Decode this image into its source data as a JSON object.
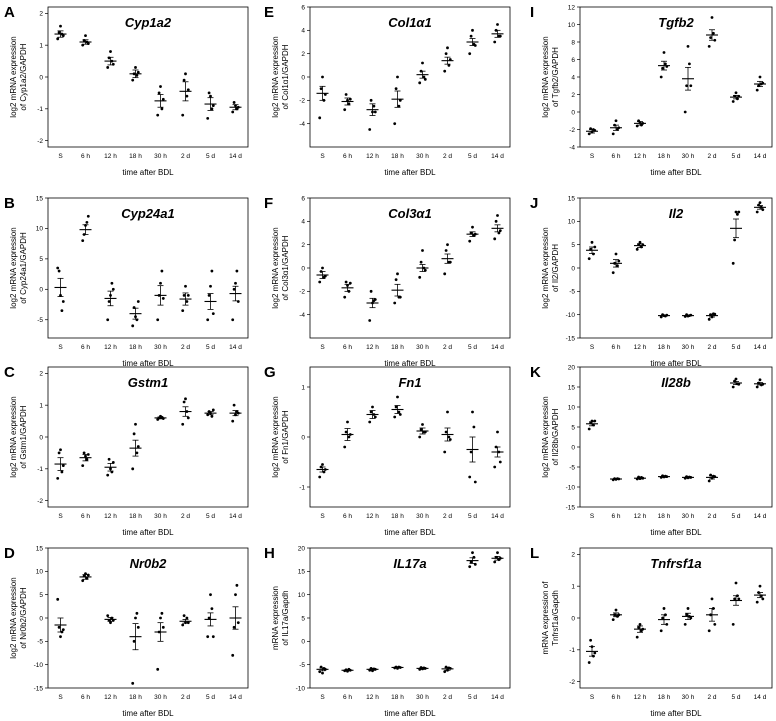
{
  "figure": {
    "xlabel": "time after BDL",
    "categories": [
      "S",
      "6 h",
      "12 h",
      "18 h",
      "30 h",
      "2 d",
      "5 d",
      "14 d"
    ]
  },
  "chart_data": [
    {
      "type": "scatter",
      "panel": "A",
      "title": "Cyp1a2",
      "ylabel": [
        "log2 mRNA expression",
        "of Cyp1a2/GAPDH"
      ],
      "xlabel": "time after BDL",
      "ylim": [
        -2.2,
        2.2
      ],
      "yticks": [
        -2,
        -1,
        0,
        1,
        2
      ],
      "categories": [
        "S",
        "6 h",
        "12 h",
        "18 h",
        "30 h",
        "2 d",
        "5 d",
        "14 d"
      ],
      "means": [
        1.35,
        1.1,
        0.5,
        0.1,
        -0.75,
        -0.45,
        -0.85,
        -0.95
      ],
      "sem": [
        0.1,
        0.07,
        0.12,
        0.12,
        0.2,
        0.3,
        0.2,
        0.08
      ],
      "points": [
        [
          1.2,
          1.4,
          1.6,
          1.35,
          1.3
        ],
        [
          1.0,
          1.15,
          1.3,
          1.1,
          1.05
        ],
        [
          0.3,
          0.6,
          0.8,
          0.5,
          0.4
        ],
        [
          -0.1,
          0.1,
          0.3,
          0.05,
          0.15
        ],
        [
          -1.2,
          -0.5,
          -0.3,
          -1.0,
          -0.7
        ],
        [
          -1.2,
          -0.1,
          0.1,
          -0.6,
          -0.4
        ],
        [
          -1.3,
          -0.5,
          -0.6,
          -1.0,
          -0.9
        ],
        [
          -1.1,
          -0.8,
          -0.9,
          -1.0,
          -0.95
        ]
      ]
    },
    {
      "type": "scatter",
      "panel": "B",
      "title": "Cyp24a1",
      "ylabel": [
        "log2 mRNA expression",
        "of Cyp24a1/GAPDH"
      ],
      "xlabel": "time after BDL",
      "ylim": [
        -8,
        15
      ],
      "yticks": [
        -5,
        0,
        5,
        10,
        15
      ],
      "categories": [
        "S",
        "6 h",
        "12 h",
        "18 h",
        "30 h",
        "2 d",
        "5 d",
        "14 d"
      ],
      "means": [
        0.3,
        9.8,
        -1.5,
        -4.0,
        -1.0,
        -1.6,
        -2.0,
        -0.7
      ],
      "sem": [
        1.5,
        0.8,
        1.2,
        0.9,
        1.6,
        1.0,
        1.3,
        1.2
      ],
      "points": [
        [
          3.5,
          3.0,
          -1.0,
          -3.5,
          -2.0
        ],
        [
          8.0,
          9.0,
          10.5,
          11.0,
          12.0
        ],
        [
          -5.0,
          -2.0,
          -1.0,
          1.0,
          0.0
        ],
        [
          -6.0,
          -3.0,
          -4.5,
          -5.0,
          -2.0
        ],
        [
          -5.0,
          -1.0,
          1.0,
          3.0,
          -1.5
        ],
        [
          -3.5,
          -1.0,
          0.5,
          -2.0,
          -1.0
        ],
        [
          -5.0,
          -1.0,
          0.5,
          3.0,
          -4.0
        ],
        [
          -5.0,
          0.0,
          1.0,
          3.0,
          -2.0
        ]
      ]
    },
    {
      "type": "scatter",
      "panel": "C",
      "title": "Gstm1",
      "ylabel": [
        "log2 mRNA expression",
        "of Gstm1/GAPDH"
      ],
      "xlabel": "time after BDL",
      "ylim": [
        -2.2,
        2.2
      ],
      "yticks": [
        -2,
        -1,
        0,
        1,
        2
      ],
      "categories": [
        "S",
        "6 h",
        "12 h",
        "18 h",
        "30 h",
        "2 d",
        "5 d",
        "14 d"
      ],
      "means": [
        -0.85,
        -0.65,
        -0.95,
        -0.35,
        0.6,
        0.8,
        0.75,
        0.75
      ],
      "sem": [
        0.2,
        0.1,
        0.12,
        0.25,
        0.03,
        0.15,
        0.05,
        0.08
      ],
      "points": [
        [
          -1.3,
          -0.5,
          -0.4,
          -1.1,
          -0.9
        ],
        [
          -0.9,
          -0.5,
          -0.6,
          -0.7,
          -0.55
        ],
        [
          -1.2,
          -0.7,
          -1.0,
          -1.1,
          -0.8
        ],
        [
          -1.0,
          0.1,
          0.4,
          -0.5,
          -0.3
        ],
        [
          0.55,
          0.6,
          0.65,
          0.62,
          0.58
        ],
        [
          0.4,
          1.1,
          1.2,
          0.8,
          0.6
        ],
        [
          0.7,
          0.8,
          0.75,
          0.65,
          0.85
        ],
        [
          0.5,
          1.0,
          0.7,
          0.8,
          0.75
        ]
      ]
    },
    {
      "type": "scatter",
      "panel": "D",
      "title": "Nr0b2",
      "ylabel": [
        "log2 mRNA expression",
        "of Nr0b2/GAPDH"
      ],
      "xlabel": "time after BDL",
      "ylim": [
        -15,
        15
      ],
      "yticks": [
        -15,
        -10,
        -5,
        0,
        5,
        10,
        15
      ],
      "categories": [
        "S",
        "6 h",
        "12 h",
        "18 h",
        "30 h",
        "2 d",
        "5 d",
        "14 d"
      ],
      "means": [
        -1.5,
        8.8,
        -0.3,
        -4.0,
        -3.0,
        -0.7,
        -0.3,
        0.0
      ],
      "sem": [
        1.5,
        0.5,
        0.4,
        2.8,
        2.0,
        0.4,
        1.4,
        2.4
      ],
      "points": [
        [
          4.0,
          -2.0,
          -4.0,
          -3.0,
          -2.5
        ],
        [
          8.0,
          9.0,
          9.5,
          8.5,
          9.2
        ],
        [
          0.5,
          -0.5,
          -1.0,
          0.0,
          -0.5
        ],
        [
          -14.0,
          -5.0,
          0.0,
          1.0,
          -2.0
        ],
        [
          -11.0,
          -3.0,
          0.0,
          1.0,
          -2.0
        ],
        [
          -1.5,
          0.5,
          -1.0,
          0.0,
          -1.0
        ],
        [
          -4.0,
          0.0,
          5.0,
          2.0,
          -4.0
        ],
        [
          -8.0,
          -2.0,
          5.0,
          7.0,
          -1.0
        ]
      ]
    },
    {
      "type": "scatter",
      "panel": "E",
      "title": "Col1α1",
      "ylabel": [
        "log2 mRNA expression",
        "of Col1α1/GAPDH"
      ],
      "xlabel": "time after BDL",
      "ylim": [
        -6,
        6
      ],
      "yticks": [
        -4,
        -2,
        0,
        2,
        4,
        6
      ],
      "categories": [
        "S",
        "6 h",
        "12 h",
        "18 h",
        "30 h",
        "2 d",
        "5 d",
        "14 d"
      ],
      "means": [
        -1.4,
        -2.1,
        -2.8,
        -1.9,
        0.2,
        1.4,
        3.0,
        3.7
      ],
      "sem": [
        0.6,
        0.3,
        0.5,
        0.7,
        0.3,
        0.3,
        0.3,
        0.3
      ],
      "points": [
        [
          -3.5,
          -1.0,
          0.0,
          -2.0,
          -1.5
        ],
        [
          -2.8,
          -1.5,
          -2.0,
          -2.3,
          -1.9
        ],
        [
          -4.5,
          -2.0,
          -3.0,
          -2.5,
          -3.0
        ],
        [
          -4.0,
          -1.0,
          0.0,
          -2.5,
          -2.0
        ],
        [
          -0.5,
          0.5,
          1.2,
          0.0,
          -0.2
        ],
        [
          0.5,
          2.0,
          2.5,
          1.0,
          1.5
        ],
        [
          2.0,
          3.5,
          4.0,
          2.8,
          2.7
        ],
        [
          3.0,
          4.0,
          4.5,
          3.5,
          3.5
        ]
      ]
    },
    {
      "type": "scatter",
      "panel": "F",
      "title": "Col3α1",
      "ylabel": [
        "log2 mRNA expression",
        "of Col3α1/GAPDH"
      ],
      "xlabel": "time after BDL",
      "ylim": [
        -6,
        6
      ],
      "yticks": [
        -4,
        -2,
        0,
        2,
        4,
        6
      ],
      "categories": [
        "S",
        "6 h",
        "12 h",
        "18 h",
        "30 h",
        "2 d",
        "5 d",
        "14 d"
      ],
      "means": [
        -0.6,
        -1.7,
        -3.0,
        -1.9,
        0.0,
        0.8,
        2.9,
        3.4
      ],
      "sem": [
        0.3,
        0.3,
        0.4,
        0.5,
        0.3,
        0.4,
        0.2,
        0.3
      ],
      "points": [
        [
          -1.2,
          -0.3,
          0.0,
          -0.8,
          -0.7
        ],
        [
          -2.5,
          -1.2,
          -1.5,
          -2.0,
          -1.3
        ],
        [
          -4.5,
          -2.0,
          -3.0,
          -2.8,
          -2.7
        ],
        [
          -3.0,
          -1.0,
          -0.5,
          -2.5,
          -2.5
        ],
        [
          -0.8,
          0.5,
          1.5,
          0.0,
          -0.2
        ],
        [
          -0.5,
          1.5,
          2.0,
          0.5,
          0.5
        ],
        [
          2.3,
          3.0,
          3.5,
          2.8,
          2.9
        ],
        [
          2.5,
          4.0,
          4.5,
          3.0,
          3.2
        ]
      ]
    },
    {
      "type": "scatter",
      "panel": "G",
      "title": "Fn1",
      "ylabel": [
        "log2 mRNA expression",
        "of Fn1/GAPDH"
      ],
      "xlabel": "time after BDL",
      "ylim": [
        -1.4,
        1.4
      ],
      "yticks": [
        -1,
        0,
        1
      ],
      "categories": [
        "S",
        "6 h",
        "12 h",
        "18 h",
        "30 h",
        "2 d",
        "5 d",
        "14 d"
      ],
      "means": [
        -0.65,
        0.05,
        0.45,
        0.55,
        0.12,
        0.05,
        -0.25,
        -0.3
      ],
      "sem": [
        0.05,
        0.12,
        0.08,
        0.08,
        0.06,
        0.13,
        0.25,
        0.1
      ],
      "points": [
        [
          -0.8,
          -0.6,
          -0.55,
          -0.7,
          -0.65
        ],
        [
          -0.2,
          0.1,
          0.3,
          0.0,
          0.05
        ],
        [
          0.3,
          0.5,
          0.6,
          0.45,
          0.4
        ],
        [
          0.4,
          0.6,
          0.8,
          0.5,
          0.45
        ],
        [
          0.0,
          0.15,
          0.25,
          0.1,
          0.1
        ],
        [
          -0.3,
          0.1,
          0.5,
          0.0,
          -0.05
        ],
        [
          -0.8,
          -0.3,
          0.5,
          0.2,
          -0.9
        ],
        [
          -0.6,
          -0.2,
          0.1,
          -0.3,
          -0.5
        ]
      ]
    },
    {
      "type": "scatter",
      "panel": "H",
      "title": "IL17a",
      "ylabel": [
        "mRNA expression",
        "of IL17a/Gapdh"
      ],
      "xlabel": "time after BDL",
      "ylim": [
        -10,
        20
      ],
      "yticks": [
        -10,
        -5,
        0,
        5,
        10,
        15,
        20
      ],
      "categories": [
        "S",
        "6 h",
        "12 h",
        "18 h",
        "30 h",
        "2 d",
        "5 d",
        "14 d"
      ],
      "means": [
        -6.0,
        -6.2,
        -6.0,
        -5.6,
        -5.8,
        -5.9,
        17.3,
        17.8
      ],
      "sem": [
        0.3,
        0.1,
        0.2,
        0.1,
        0.2,
        0.3,
        0.6,
        0.4
      ],
      "points": [
        [
          -6.5,
          -5.5,
          -6.8,
          -5.8,
          -6.0
        ],
        [
          -6.3,
          -6.1,
          -6.4,
          -6.0,
          -6.2
        ],
        [
          -6.2,
          -5.8,
          -6.3,
          -5.9,
          -6.0
        ],
        [
          -5.7,
          -5.5,
          -5.8,
          -5.5,
          -5.6
        ],
        [
          -6.0,
          -5.6,
          -5.9,
          -5.7,
          -5.8
        ],
        [
          -6.5,
          -5.5,
          -6.2,
          -5.7,
          -5.8
        ],
        [
          16.0,
          17.0,
          19.0,
          18.0,
          16.5
        ],
        [
          17.0,
          18.0,
          19.0,
          17.5,
          17.8
        ]
      ]
    },
    {
      "type": "scatter",
      "panel": "I",
      "title": "Tgfb2",
      "ylabel": [
        "log2 mRNA expression",
        "of Tgfb2/GAPDH"
      ],
      "xlabel": "time after BDL",
      "ylim": [
        -4,
        12
      ],
      "yticks": [
        -4,
        -2,
        0,
        2,
        4,
        6,
        8,
        10,
        12
      ],
      "categories": [
        "S",
        "6 h",
        "12 h",
        "18 h",
        "30 h",
        "2 d",
        "5 d",
        "14 d"
      ],
      "means": [
        -2.2,
        -1.8,
        -1.3,
        5.3,
        3.8,
        8.8,
        1.7,
        3.2
      ],
      "sem": [
        0.2,
        0.3,
        0.2,
        0.5,
        1.3,
        0.6,
        0.2,
        0.3
      ],
      "points": [
        [
          -2.5,
          -1.9,
          -2.3,
          -2.0,
          -2.1
        ],
        [
          -2.5,
          -1.5,
          -1.0,
          -2.0,
          -1.8
        ],
        [
          -1.6,
          -1.0,
          -1.2,
          -1.5,
          -1.3
        ],
        [
          4.0,
          5.0,
          6.8,
          5.5,
          5.2
        ],
        [
          0.0,
          3.0,
          7.5,
          5.5,
          3.0
        ],
        [
          7.5,
          8.5,
          10.8,
          9.0,
          8.2
        ],
        [
          1.2,
          1.8,
          2.2,
          1.5,
          1.8
        ],
        [
          2.5,
          3.0,
          4.0,
          3.2,
          3.3
        ]
      ]
    },
    {
      "type": "scatter",
      "panel": "J",
      "title": "Il2",
      "ylabel": [
        "log2 mRNA expression",
        "of Il2/GAPDH"
      ],
      "xlabel": "time after BDL",
      "ylim": [
        -15,
        15
      ],
      "yticks": [
        -15,
        -10,
        -5,
        0,
        5,
        10,
        15
      ],
      "categories": [
        "S",
        "6 h",
        "12 h",
        "18 h",
        "30 h",
        "2 d",
        "5 d",
        "14 d"
      ],
      "means": [
        3.8,
        1.0,
        4.8,
        -10.2,
        -10.2,
        -10.2,
        8.5,
        13.0
      ],
      "sem": [
        0.7,
        0.8,
        0.4,
        0.1,
        0.1,
        0.3,
        2.0,
        0.4
      ],
      "points": [
        [
          2.0,
          4.0,
          5.5,
          3.0,
          4.5
        ],
        [
          -1.0,
          1.0,
          3.0,
          0.5,
          1.5
        ],
        [
          4.0,
          5.0,
          5.5,
          4.5,
          5.0
        ],
        [
          -10.5,
          -10.0,
          -10.2,
          -10.3,
          -10.1
        ],
        [
          -10.4,
          -10.0,
          -10.3,
          -10.2,
          -10.1
        ],
        [
          -11.0,
          -10.0,
          -10.5,
          -9.8,
          -9.9
        ],
        [
          1.0,
          6.0,
          12.0,
          11.5,
          12.0
        ],
        [
          12.0,
          13.5,
          14.0,
          13.0,
          12.5
        ]
      ]
    },
    {
      "type": "scatter",
      "panel": "K",
      "title": "Il28b",
      "ylabel": [
        "log2 mRNA expression",
        "of Il28b/GAPDH"
      ],
      "xlabel": "time after BDL",
      "ylim": [
        -15,
        20
      ],
      "yticks": [
        -15,
        -10,
        -5,
        0,
        5,
        10,
        15,
        20
      ],
      "categories": [
        "S",
        "6 h",
        "12 h",
        "18 h",
        "30 h",
        "2 d",
        "5 d",
        "14 d"
      ],
      "means": [
        5.8,
        -8.0,
        -7.8,
        -7.4,
        -7.6,
        -7.6,
        16.0,
        15.8
      ],
      "sem": [
        0.5,
        0.1,
        0.2,
        0.2,
        0.2,
        0.4,
        0.4,
        0.3
      ],
      "points": [
        [
          4.5,
          6.0,
          6.5,
          5.5,
          6.5
        ],
        [
          -8.2,
          -7.9,
          -8.1,
          -7.9,
          -8.0
        ],
        [
          -8.0,
          -7.5,
          -7.9,
          -7.6,
          -7.8
        ],
        [
          -7.6,
          -7.2,
          -7.5,
          -7.3,
          -7.4
        ],
        [
          -7.8,
          -7.4,
          -7.7,
          -7.5,
          -7.6
        ],
        [
          -8.5,
          -7.0,
          -7.8,
          -7.3,
          -7.4
        ],
        [
          15.0,
          16.5,
          17.0,
          15.8,
          15.7
        ],
        [
          15.0,
          16.0,
          16.8,
          15.5,
          15.7
        ]
      ]
    },
    {
      "type": "scatter",
      "panel": "L",
      "title": "Tnfrsf1a",
      "ylabel": [
        "mRNA expression of",
        "Tnfrsf1a/Gapdh"
      ],
      "xlabel": "time after BDL",
      "ylim": [
        -2.2,
        2.2
      ],
      "yticks": [
        -2,
        -1,
        0,
        1,
        2
      ],
      "categories": [
        "S",
        "6 h",
        "12 h",
        "18 h",
        "30 h",
        "2 d",
        "5 d",
        "14 d"
      ],
      "means": [
        -1.05,
        0.1,
        -0.35,
        -0.05,
        0.05,
        0.1,
        0.55,
        0.72
      ],
      "sem": [
        0.15,
        0.06,
        0.1,
        0.15,
        0.1,
        0.2,
        0.15,
        0.08
      ],
      "points": [
        [
          -1.4,
          -0.7,
          -0.9,
          -1.2,
          -1.1
        ],
        [
          -0.05,
          0.1,
          0.25,
          0.05,
          0.1
        ],
        [
          -0.6,
          -0.3,
          -0.2,
          -0.4,
          -0.35
        ],
        [
          -0.4,
          0.0,
          0.3,
          0.1,
          -0.2
        ],
        [
          -0.2,
          0.1,
          0.3,
          0.05,
          0.0
        ],
        [
          -0.4,
          0.1,
          0.6,
          0.3,
          -0.2
        ],
        [
          -0.2,
          0.6,
          1.1,
          0.7,
          0.6
        ],
        [
          0.5,
          0.8,
          1.0,
          0.7,
          0.6
        ]
      ]
    }
  ]
}
